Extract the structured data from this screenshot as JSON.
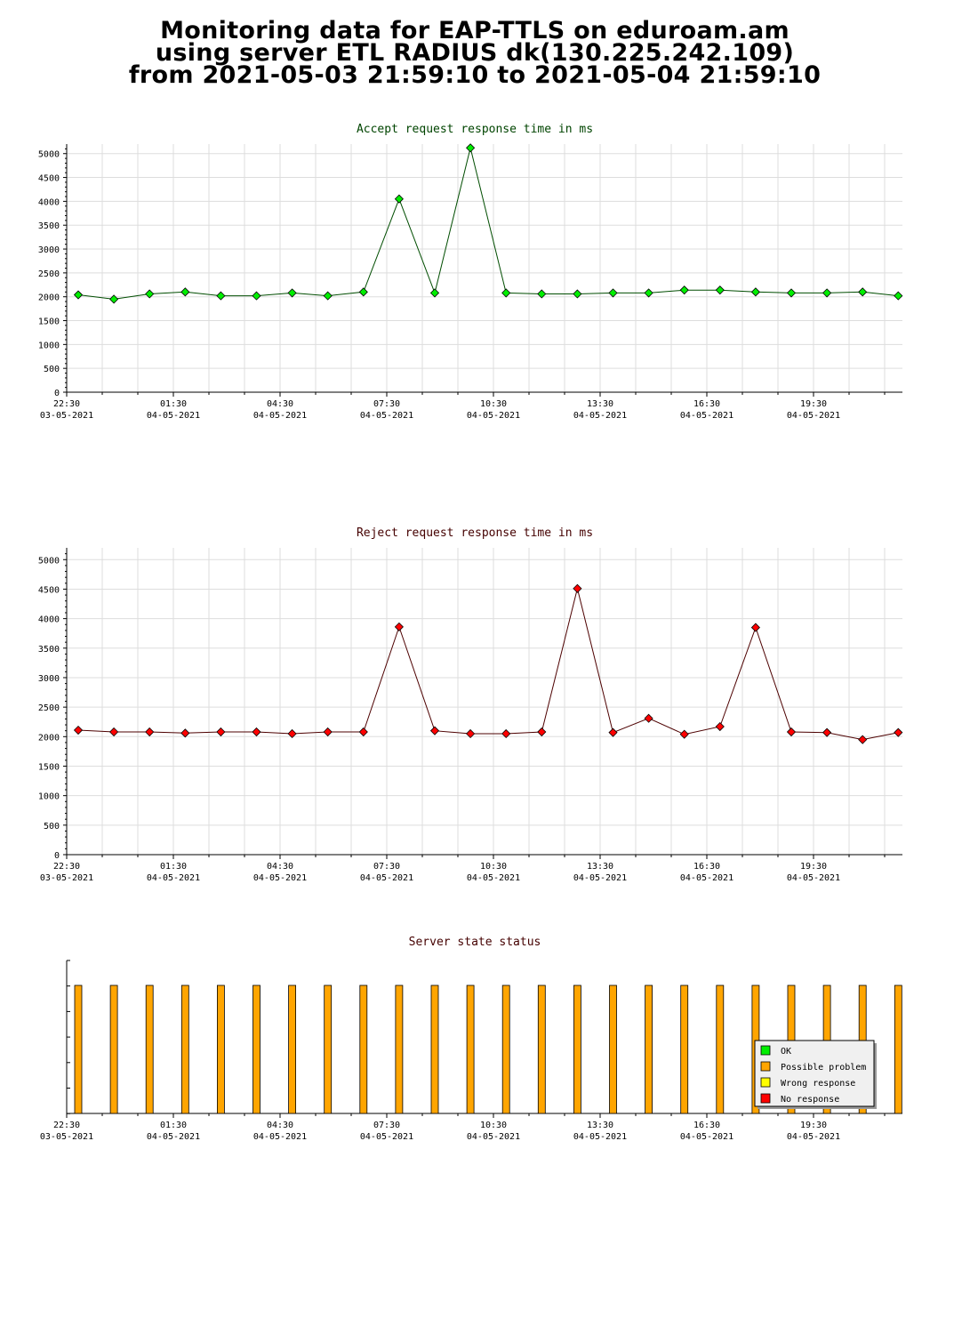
{
  "header": {
    "title_lines": [
      "Monitoring data for EAP-TTLS on eduroam.am",
      "using server ETL RADIUS dk(130.225.242.109)",
      "from 2021-05-03 21:59:10 to 2021-05-04 21:59:10"
    ]
  },
  "colors": {
    "accept_line": "#004d00",
    "accept_marker": "#00ee00",
    "reject_line": "#4d0000",
    "reject_marker": "#ff0000",
    "status_bar": "#ffa500",
    "grid": "#dddddd",
    "title_green": "#004400",
    "title_red": "#440000"
  },
  "chart_data": [
    {
      "type": "line",
      "title": "Accept request response time in ms",
      "ylim": [
        0,
        5200
      ],
      "yticks": [
        0,
        500,
        1000,
        1500,
        2000,
        2500,
        3000,
        3500,
        4000,
        4500,
        5000
      ],
      "x": [
        "2021-05-03 22:30",
        "2021-05-03 23:30",
        "2021-05-04 00:30",
        "2021-05-04 01:30",
        "2021-05-04 02:30",
        "2021-05-04 03:30",
        "2021-05-04 04:30",
        "2021-05-04 05:30",
        "2021-05-04 06:30",
        "2021-05-04 07:30",
        "2021-05-04 08:30",
        "2021-05-04 09:30",
        "2021-05-04 10:30",
        "2021-05-04 11:30",
        "2021-05-04 12:30",
        "2021-05-04 13:30",
        "2021-05-04 14:30",
        "2021-05-04 15:30",
        "2021-05-04 16:30",
        "2021-05-04 17:30",
        "2021-05-04 18:30",
        "2021-05-04 19:30",
        "2021-05-04 20:30",
        "2021-05-04 21:30"
      ],
      "values": [
        2040,
        1950,
        2060,
        2100,
        2020,
        2020,
        2080,
        2020,
        2100,
        4050,
        2080,
        5120,
        2080,
        2060,
        2060,
        2080,
        2080,
        2140,
        2140,
        2100,
        2080,
        2080,
        2100,
        2020
      ],
      "xtick_labels": [
        {
          "time": "22:30",
          "date": "03-05-2021"
        },
        {
          "time": "01:30",
          "date": "04-05-2021"
        },
        {
          "time": "04:30",
          "date": "04-05-2021"
        },
        {
          "time": "07:30",
          "date": "04-05-2021"
        },
        {
          "time": "10:30",
          "date": "04-05-2021"
        },
        {
          "time": "13:30",
          "date": "04-05-2021"
        },
        {
          "time": "16:30",
          "date": "04-05-2021"
        },
        {
          "time": "19:30",
          "date": "04-05-2021"
        }
      ],
      "grid": true
    },
    {
      "type": "line",
      "title": "Reject request response time in ms",
      "ylim": [
        0,
        5200
      ],
      "yticks": [
        0,
        500,
        1000,
        1500,
        2000,
        2500,
        3000,
        3500,
        4000,
        4500,
        5000
      ],
      "x": [
        "2021-05-03 22:30",
        "2021-05-03 23:30",
        "2021-05-04 00:30",
        "2021-05-04 01:30",
        "2021-05-04 02:30",
        "2021-05-04 03:30",
        "2021-05-04 04:30",
        "2021-05-04 05:30",
        "2021-05-04 06:30",
        "2021-05-04 07:30",
        "2021-05-04 08:30",
        "2021-05-04 09:30",
        "2021-05-04 10:30",
        "2021-05-04 11:30",
        "2021-05-04 12:30",
        "2021-05-04 13:30",
        "2021-05-04 14:30",
        "2021-05-04 15:30",
        "2021-05-04 16:30",
        "2021-05-04 17:30",
        "2021-05-04 18:30",
        "2021-05-04 19:30",
        "2021-05-04 20:30",
        "2021-05-04 21:30"
      ],
      "values": [
        2110,
        2080,
        2080,
        2060,
        2080,
        2080,
        2050,
        2080,
        2080,
        3860,
        2100,
        2050,
        2050,
        2080,
        4510,
        2070,
        2310,
        2040,
        2170,
        3850,
        2080,
        2070,
        1950,
        2070
      ],
      "xtick_labels": [
        {
          "time": "22:30",
          "date": "03-05-2021"
        },
        {
          "time": "01:30",
          "date": "04-05-2021"
        },
        {
          "time": "04:30",
          "date": "04-05-2021"
        },
        {
          "time": "07:30",
          "date": "04-05-2021"
        },
        {
          "time": "10:30",
          "date": "04-05-2021"
        },
        {
          "time": "13:30",
          "date": "04-05-2021"
        },
        {
          "time": "16:30",
          "date": "04-05-2021"
        },
        {
          "time": "19:30",
          "date": "04-05-2021"
        }
      ],
      "grid": true
    },
    {
      "type": "bar",
      "title": "Server state status",
      "x": [
        "2021-05-03 22:30",
        "2021-05-03 23:30",
        "2021-05-04 00:30",
        "2021-05-04 01:30",
        "2021-05-04 02:30",
        "2021-05-04 03:30",
        "2021-05-04 04:30",
        "2021-05-04 05:30",
        "2021-05-04 06:30",
        "2021-05-04 07:30",
        "2021-05-04 08:30",
        "2021-05-04 09:30",
        "2021-05-04 10:30",
        "2021-05-04 11:30",
        "2021-05-04 12:30",
        "2021-05-04 13:30",
        "2021-05-04 14:30",
        "2021-05-04 15:30",
        "2021-05-04 16:30",
        "2021-05-04 17:30",
        "2021-05-04 18:30",
        "2021-05-04 19:30",
        "2021-05-04 20:30",
        "2021-05-04 21:30"
      ],
      "states": [
        "Possible problem",
        "Possible problem",
        "Possible problem",
        "Possible problem",
        "Possible problem",
        "Possible problem",
        "Possible problem",
        "Possible problem",
        "Possible problem",
        "Possible problem",
        "Possible problem",
        "Possible problem",
        "Possible problem",
        "Possible problem",
        "Possible problem",
        "Possible problem",
        "Possible problem",
        "Possible problem",
        "Possible problem",
        "Possible problem",
        "Possible problem",
        "Possible problem",
        "Possible problem",
        "Possible problem"
      ],
      "xtick_labels": [
        {
          "time": "22:30",
          "date": "03-05-2021"
        },
        {
          "time": "01:30",
          "date": "04-05-2021"
        },
        {
          "time": "04:30",
          "date": "04-05-2021"
        },
        {
          "time": "07:30",
          "date": "04-05-2021"
        },
        {
          "time": "10:30",
          "date": "04-05-2021"
        },
        {
          "time": "13:30",
          "date": "04-05-2021"
        },
        {
          "time": "16:30",
          "date": "04-05-2021"
        },
        {
          "time": "19:30",
          "date": "04-05-2021"
        }
      ],
      "legend": {
        "position": "bottom-right",
        "entries": [
          {
            "label": "OK",
            "color": "#00ee00"
          },
          {
            "label": "Possible problem",
            "color": "#ffa500"
          },
          {
            "label": "Wrong response",
            "color": "#ffff00"
          },
          {
            "label": "No response",
            "color": "#ff0000"
          }
        ]
      }
    }
  ]
}
